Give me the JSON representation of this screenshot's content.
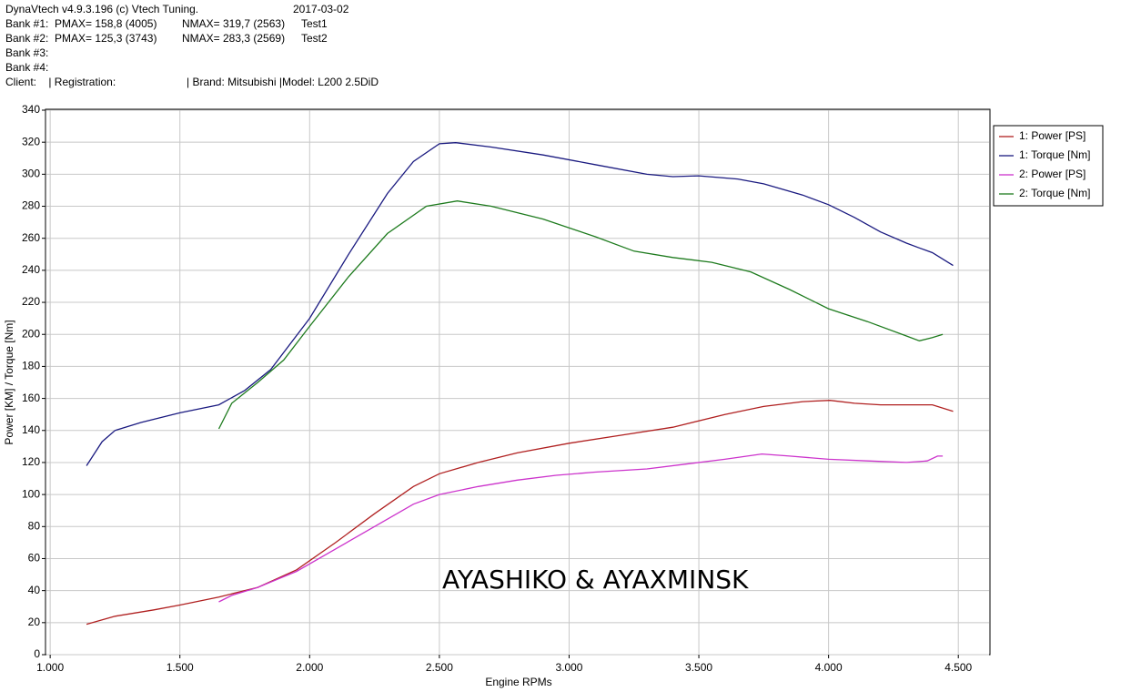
{
  "header": {
    "app": "DynaVtech v4.9.3.196 (c) Vtech Tuning.",
    "date": "2017-03-02",
    "banks": [
      [
        "Bank #1:  PMAX= 158,8 (4005)",
        "NMAX= 319,7 (2563)",
        "Test1"
      ],
      [
        "Bank #2:  PMAX= 125,3 (3743)",
        "NMAX= 283,3 (2569)",
        "Test2"
      ],
      [
        "Bank #3:"
      ],
      [
        "Bank #4:"
      ]
    ],
    "client": "Client:    | Registration:",
    "vehicle": "| Brand: Mitsubishi |Model: L200 2.5DiD"
  },
  "chart_data": {
    "type": "line",
    "xlabel": "Engine RPMs",
    "ylabel": "Power [KM] / Torque [Nm]",
    "annotation": "AYASHIKO & AYAXMINSK",
    "grid": true,
    "legend": "right",
    "xlim": [
      982,
      4622
    ],
    "ylim": [
      0,
      340
    ],
    "xticks": [
      {
        "value": 1000,
        "label": "1.000"
      },
      {
        "value": 1500,
        "label": "1.500"
      },
      {
        "value": 2000,
        "label": "2.000"
      },
      {
        "value": 2500,
        "label": "2.500"
      },
      {
        "value": 3000,
        "label": "3.000"
      },
      {
        "value": 3500,
        "label": "3.500"
      },
      {
        "value": 4000,
        "label": "4.000"
      },
      {
        "value": 4500,
        "label": "4.500"
      }
    ],
    "yticks": [
      0,
      20,
      40,
      60,
      80,
      100,
      120,
      140,
      160,
      180,
      200,
      220,
      240,
      260,
      280,
      300,
      320,
      340
    ],
    "series": [
      {
        "name": "1: Power [PS]",
        "color": "#b02020",
        "x": [
          1140,
          1250,
          1400,
          1500,
          1650,
          1800,
          1950,
          2100,
          2250,
          2400,
          2500,
          2650,
          2800,
          3000,
          3200,
          3400,
          3600,
          3750,
          3900,
          4005,
          4100,
          4200,
          4300,
          4400,
          4480
        ],
        "values": [
          19,
          24,
          28,
          31,
          36,
          42,
          53,
          70,
          88,
          105,
          113,
          120,
          126,
          132,
          137,
          142,
          150,
          155,
          158,
          158.8,
          157,
          156,
          156,
          156,
          152
        ]
      },
      {
        "name": "1: Torque [Nm]",
        "color": "#1a1a80",
        "x": [
          1140,
          1200,
          1250,
          1350,
          1500,
          1650,
          1750,
          1850,
          2000,
          2150,
          2300,
          2400,
          2500,
          2563,
          2700,
          2900,
          3100,
          3300,
          3400,
          3500,
          3650,
          3750,
          3900,
          4000,
          4100,
          4200,
          4300,
          4350,
          4400,
          4450,
          4480
        ],
        "values": [
          118,
          133,
          140,
          145,
          151,
          156,
          165,
          178,
          210,
          250,
          288,
          308,
          319,
          319.7,
          317,
          312,
          306,
          300,
          298.5,
          299,
          297,
          294,
          287,
          281,
          273,
          264,
          257,
          254,
          251,
          246,
          243
        ]
      },
      {
        "name": "2: Power [PS]",
        "color": "#cc33cc",
        "x": [
          1650,
          1700,
          1800,
          1950,
          2100,
          2250,
          2400,
          2500,
          2650,
          2800,
          2950,
          3100,
          3300,
          3450,
          3600,
          3743,
          3850,
          4000,
          4150,
          4300,
          4380,
          4420,
          4440
        ],
        "values": [
          33,
          37,
          42,
          52,
          66,
          80,
          94,
          100,
          105,
          109,
          112,
          114,
          116,
          119,
          122,
          125.3,
          124,
          122,
          121,
          120,
          121,
          124,
          124
        ]
      },
      {
        "name": "2: Torque [Nm]",
        "color": "#1e7b1e",
        "x": [
          1650,
          1700,
          1800,
          1900,
          2000,
          2150,
          2300,
          2450,
          2569,
          2700,
          2900,
          3100,
          3250,
          3400,
          3550,
          3700,
          3850,
          4000,
          4150,
          4300,
          4350,
          4400,
          4440
        ],
        "values": [
          141,
          157,
          170,
          184,
          205,
          236,
          263,
          280,
          283.3,
          280,
          272,
          261,
          252,
          248,
          245,
          239,
          228,
          216,
          208,
          199,
          196,
          198,
          200
        ]
      }
    ]
  }
}
